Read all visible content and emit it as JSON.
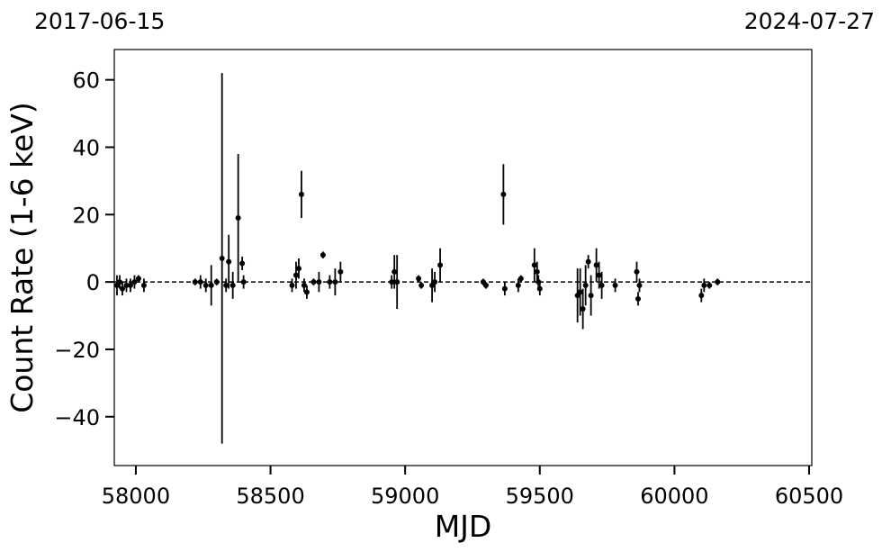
{
  "chart_data": {
    "type": "errorbar",
    "xlabel": "MJD",
    "ylabel": "Count Rate (1-6 keV)",
    "annotations": [
      "2017-06-15",
      "2024-07-27"
    ],
    "xlim": [
      57920,
      60510
    ],
    "ylim": [
      -54.5,
      69
    ],
    "xticks": [
      58000,
      58500,
      59000,
      59500,
      60000,
      60500
    ],
    "yticks": [
      {
        "value": -40,
        "label": "−40"
      },
      {
        "value": -20,
        "label": "−20"
      },
      0,
      20,
      40,
      60
    ],
    "hline": {
      "y": 0,
      "style": "dashed"
    },
    "color": "#000000",
    "x": [
      57930,
      57940,
      57950,
      57965,
      57980,
      57995,
      58010,
      58030,
      58220,
      58240,
      58260,
      58280,
      58300,
      58320,
      58335,
      58345,
      58360,
      58380,
      58395,
      58400,
      58580,
      58595,
      58605,
      58615,
      58625,
      58635,
      58660,
      58680,
      58695,
      58720,
      58740,
      58760,
      58950,
      58960,
      58970,
      59050,
      59060,
      59100,
      59110,
      59130,
      59290,
      59300,
      59365,
      59370,
      59420,
      59430,
      59480,
      59490,
      59495,
      59500,
      59640,
      59650,
      59660,
      59670,
      59680,
      59690,
      59710,
      59720,
      59730,
      59780,
      59860,
      59865,
      59870,
      60100,
      60110,
      60130,
      60160
    ],
    "values": [
      -1,
      0,
      -2,
      -1,
      -1,
      0,
      1,
      -1,
      0,
      0,
      -1,
      -1,
      0,
      7,
      -1,
      6,
      -1,
      19,
      5.5,
      0,
      -1,
      2,
      4,
      26,
      -1,
      -3,
      0,
      0,
      8,
      0,
      0,
      3,
      0,
      3,
      0,
      1,
      -1,
      -1,
      0,
      5,
      0,
      -1,
      26,
      -2,
      -1,
      1,
      5,
      3,
      0,
      -2,
      -4,
      -3,
      -8,
      -1,
      6,
      -4,
      5,
      2,
      -1,
      -1,
      3,
      -5,
      -1,
      -4,
      -1,
      -1,
      0
    ],
    "errors": [
      3,
      2,
      2,
      2,
      2,
      2,
      1,
      2,
      1,
      2,
      2,
      6,
      1,
      55,
      2,
      8,
      4,
      19,
      2,
      2,
      2,
      4,
      3,
      7,
      2,
      2,
      1,
      3,
      1,
      2,
      4,
      3,
      2,
      5,
      8,
      1,
      1,
      5,
      3,
      5,
      1,
      1,
      9,
      2,
      2,
      1,
      5,
      3,
      2,
      2,
      8,
      7,
      6,
      6,
      2,
      6,
      5,
      4,
      4,
      2,
      3,
      2,
      2,
      2,
      2,
      1,
      1
    ]
  }
}
